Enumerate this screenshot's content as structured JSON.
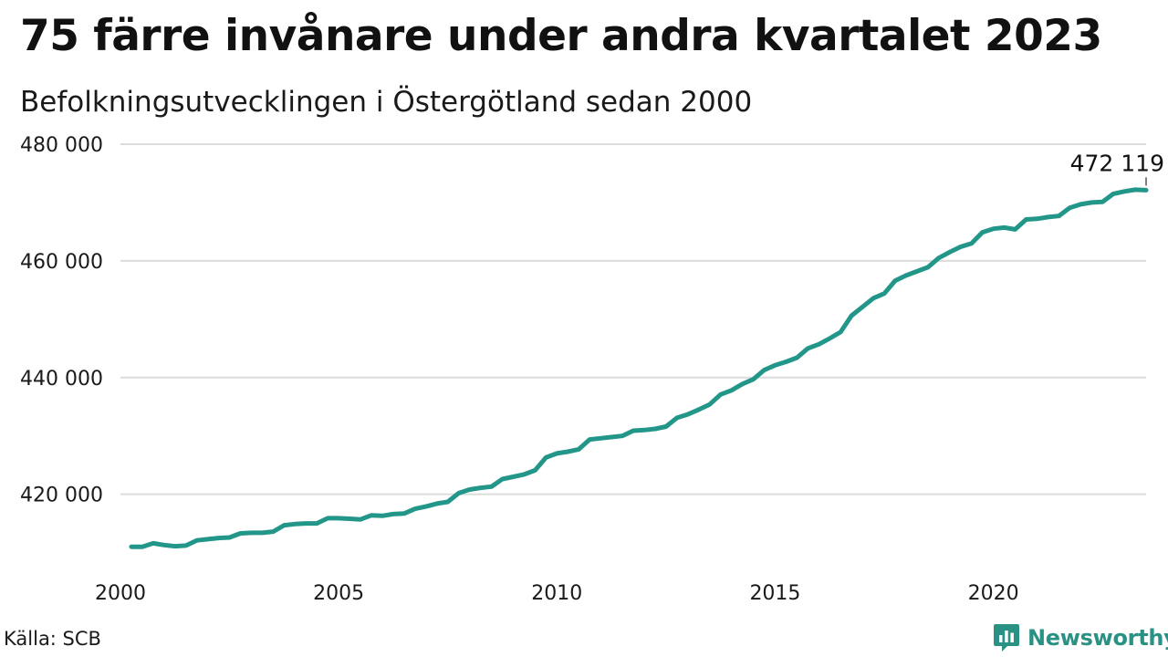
{
  "title": "75 färre invånare under andra kvartalet 2023",
  "subtitle": "Befolkningsutvecklingen i Östergötland sedan 2000",
  "source": "Källa: SCB",
  "brand": {
    "name": "Newsworthy",
    "icon": "newsworthy-logo-icon"
  },
  "colors": {
    "line": "#23968a",
    "grid": "#dcdcdc",
    "brand": "#2a9285"
  },
  "chart_data": {
    "type": "line",
    "title": "75 färre invånare under andra kvartalet 2023",
    "subtitle": "Befolkningsutvecklingen i Östergötland sedan 2000",
    "xlabel": "",
    "ylabel": "",
    "grid": true,
    "xlim": [
      2000,
      2023.5
    ],
    "ylim": [
      409000,
      480000
    ],
    "x_ticks": [
      2000,
      2005,
      2010,
      2015,
      2020
    ],
    "x_tick_labels": [
      "2000",
      "2005",
      "2010",
      "2015",
      "2020"
    ],
    "y_ticks": [
      420000,
      440000,
      460000,
      480000
    ],
    "y_tick_labels": [
      "420 000",
      "440 000",
      "460 000",
      "480 000"
    ],
    "end_label": "472 119",
    "series": [
      {
        "x": [
          2000.25,
          2000.5,
          2000.75,
          2001.0,
          2001.25,
          2001.5,
          2001.75,
          2002.0,
          2002.25,
          2002.5,
          2002.75,
          2003.0,
          2003.25,
          2003.5,
          2003.75,
          2004.0,
          2004.25,
          2004.5,
          2004.75,
          2005.0,
          2005.25,
          2005.5,
          2005.75,
          2006.0,
          2006.25,
          2006.5,
          2006.75,
          2007.0,
          2007.25,
          2007.5,
          2007.75,
          2008.0,
          2008.25,
          2008.5,
          2008.75,
          2009.0,
          2009.25,
          2009.5,
          2009.75,
          2010.0,
          2010.25,
          2010.5,
          2010.75,
          2011.0,
          2011.25,
          2011.5,
          2011.75,
          2012.0,
          2012.25,
          2012.5,
          2012.75,
          2013.0,
          2013.25,
          2013.5,
          2013.75,
          2014.0,
          2014.25,
          2014.5,
          2014.75,
          2015.0,
          2015.25,
          2015.5,
          2015.75,
          2016.0,
          2016.25,
          2016.5,
          2016.75,
          2017.0,
          2017.25,
          2017.5,
          2017.75,
          2018.0,
          2018.25,
          2018.5,
          2018.75,
          2019.0,
          2019.25,
          2019.5,
          2019.75,
          2020.0,
          2020.25,
          2020.5,
          2020.75,
          2021.0,
          2021.25,
          2021.5,
          2021.75,
          2022.0,
          2022.25,
          2022.5,
          2022.75,
          2023.0,
          2023.25,
          2023.5
        ],
        "values": [
          411000,
          411000,
          411600,
          411300,
          411100,
          411200,
          412100,
          412300,
          412500,
          412600,
          413300,
          413400,
          413400,
          413600,
          414700,
          414900,
          415000,
          415000,
          415900,
          415900,
          415800,
          415700,
          416400,
          416300,
          416600,
          416700,
          417500,
          417900,
          418400,
          418700,
          420200,
          420800,
          421100,
          421300,
          422600,
          423000,
          423400,
          424100,
          426300,
          427000,
          427300,
          427700,
          429400,
          429600,
          429800,
          430000,
          430900,
          431000,
          431200,
          431600,
          433100,
          433700,
          434500,
          435400,
          437100,
          437800,
          438900,
          439700,
          441300,
          442100,
          442700,
          443400,
          445000,
          445700,
          446700,
          447800,
          450600,
          452100,
          453600,
          454400,
          456600,
          457500,
          458200,
          458900,
          460500,
          461500,
          462400,
          463000,
          464900,
          465500,
          465700,
          465400,
          467100,
          467200,
          467500,
          467700,
          469100,
          469700,
          470000,
          470100,
          471500,
          471900,
          472194,
          472119
        ]
      }
    ]
  }
}
